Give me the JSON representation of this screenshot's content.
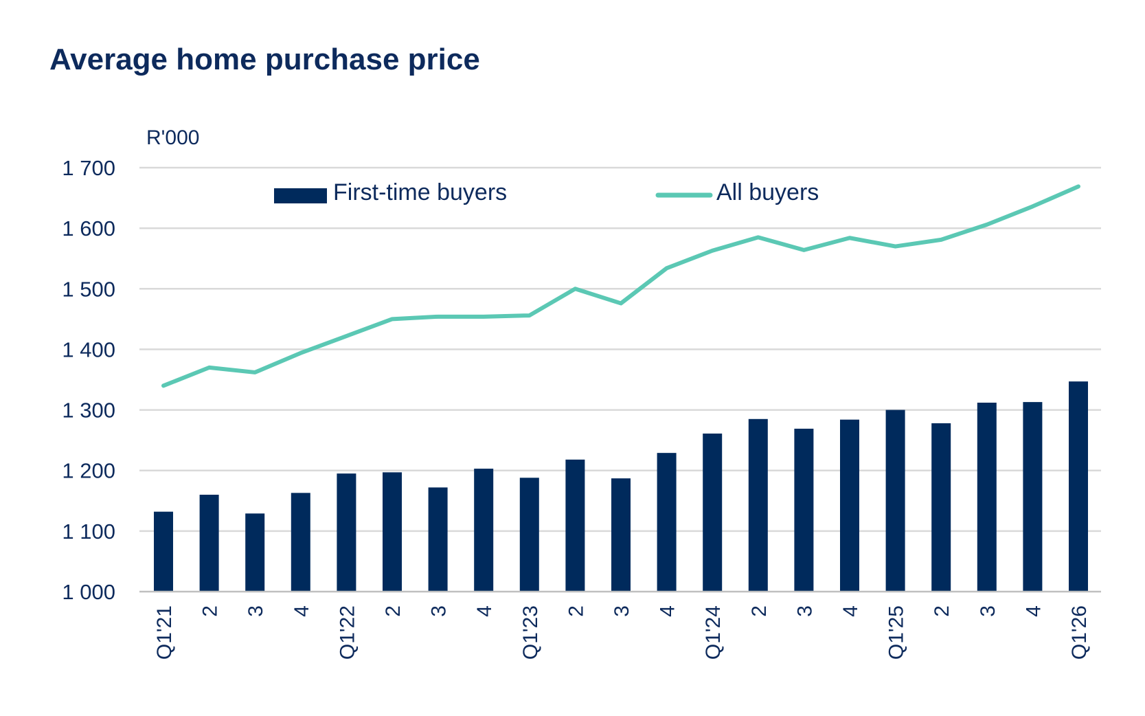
{
  "chart_data": {
    "type": "bar+line",
    "title": "Average home purchase price",
    "ylabel": "R'000",
    "ylim": [
      1000,
      1700
    ],
    "yticks": [
      1000,
      1100,
      1200,
      1300,
      1400,
      1500,
      1600,
      1700
    ],
    "ytick_labels": [
      "1 000",
      "1 100",
      "1 200",
      "1 300",
      "1 400",
      "1 500",
      "1 600",
      "1 700"
    ],
    "grid": true,
    "legend_placement": "top",
    "categories": [
      "Q1'21",
      "2",
      "3",
      "4",
      "Q1'22",
      "2",
      "3",
      "4",
      "Q1'23",
      "2",
      "3",
      "4",
      "Q1'24",
      "2",
      "3",
      "4",
      "Q1'25",
      "2",
      "3",
      "4",
      "Q1'26"
    ],
    "series": [
      {
        "name": "First-time buyers",
        "type": "bar",
        "color": "#002a5c",
        "values": [
          1132,
          1160,
          1129,
          1163,
          1195,
          1197,
          1172,
          1203,
          1188,
          1218,
          1187,
          1229,
          1261,
          1285,
          1269,
          1284,
          1300,
          1278,
          1312,
          1313,
          1347
        ]
      },
      {
        "name": "All buyers",
        "type": "line",
        "color": "#5bc8b4",
        "values": [
          1340,
          1370,
          1362,
          1394,
          1422,
          1450,
          1454,
          1454,
          1456,
          1500,
          1476,
          1534,
          1563,
          1585,
          1564,
          1584,
          1570,
          1581,
          1606,
          1636,
          1669
        ]
      }
    ]
  }
}
